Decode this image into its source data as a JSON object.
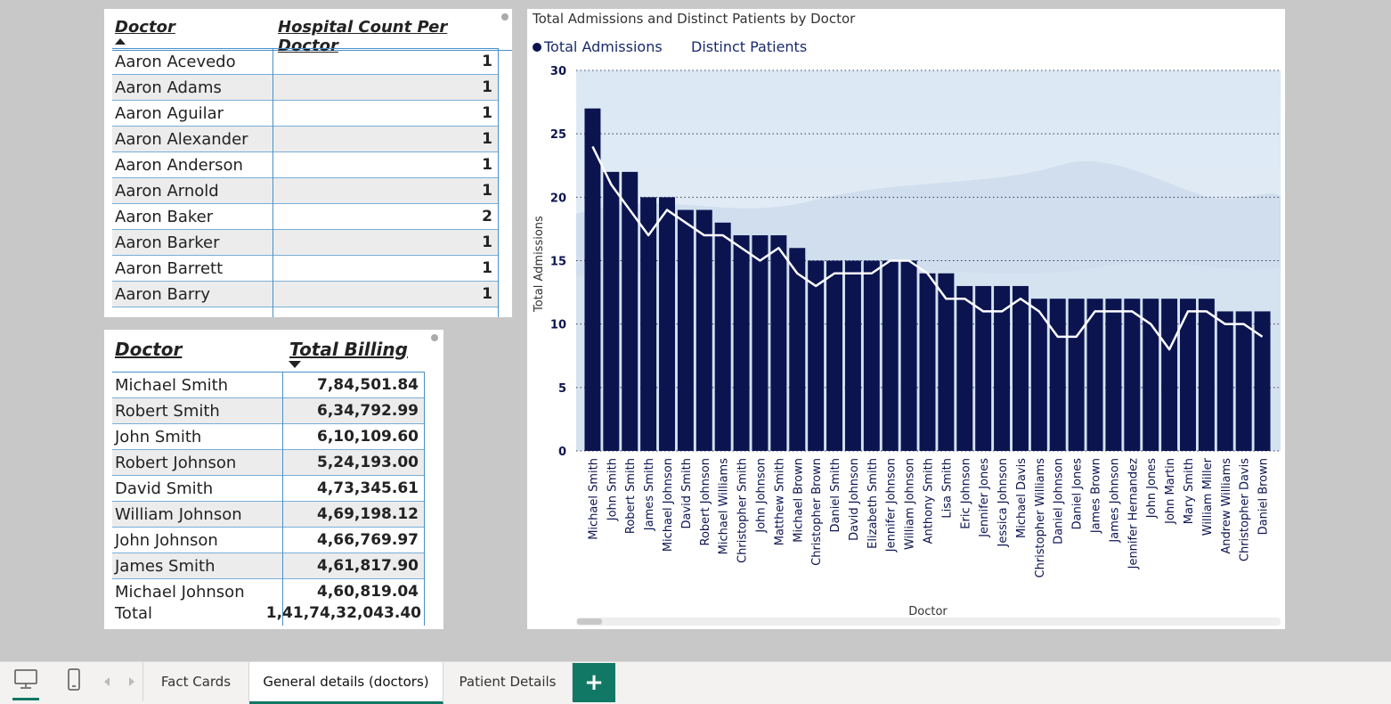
{
  "table1": {
    "col1": "Doctor",
    "col2": "Hospital Count Per Doctor",
    "rows": [
      {
        "name": "Aaron Acevedo",
        "value": "1"
      },
      {
        "name": "Aaron Adams",
        "value": "1"
      },
      {
        "name": "Aaron Aguilar",
        "value": "1"
      },
      {
        "name": "Aaron Alexander",
        "value": "1"
      },
      {
        "name": "Aaron Anderson",
        "value": "1"
      },
      {
        "name": "Aaron Arnold",
        "value": "1"
      },
      {
        "name": "Aaron Baker",
        "value": "2"
      },
      {
        "name": "Aaron Barker",
        "value": "1"
      },
      {
        "name": "Aaron Barrett",
        "value": "1"
      },
      {
        "name": "Aaron Barry",
        "value": "1"
      }
    ]
  },
  "table2": {
    "col1": "Doctor",
    "col2": "Total Billing",
    "rows": [
      {
        "name": "Michael Smith",
        "value": "7,84,501.84"
      },
      {
        "name": "Robert Smith",
        "value": "6,34,792.99"
      },
      {
        "name": "John Smith",
        "value": "6,10,109.60"
      },
      {
        "name": "Robert Johnson",
        "value": "5,24,193.00"
      },
      {
        "name": "David Smith",
        "value": "4,73,345.61"
      },
      {
        "name": "William Johnson",
        "value": "4,69,198.12"
      },
      {
        "name": "John Johnson",
        "value": "4,66,769.97"
      },
      {
        "name": "James Smith",
        "value": "4,61,817.90"
      },
      {
        "name": "Michael Johnson",
        "value": "4,60,819.04"
      }
    ],
    "total_label": "Total",
    "total_value": "1,41,74,32,043.40"
  },
  "chart": {
    "title": "Total Admissions and Distinct Patients by Doctor",
    "legend": [
      "Total Admissions",
      "Distinct Patients"
    ]
  },
  "chart_data": {
    "type": "bar",
    "title": "Total Admissions and Distinct Patients by Doctor",
    "xlabel": "Doctor",
    "ylabel": "Total Admissions",
    "ylim": [
      0,
      30
    ],
    "yticks": [
      0,
      5,
      10,
      15,
      20,
      25,
      30
    ],
    "grid": true,
    "legend_position": "top-left",
    "categories": [
      "Michael Smith",
      "John Smith",
      "Robert Smith",
      "James Smith",
      "Michael Johnson",
      "David Smith",
      "Robert Johnson",
      "Michael Williams",
      "Christopher Smith",
      "John Johnson",
      "Matthew Smith",
      "Michael Brown",
      "Christopher Brown",
      "Daniel Smith",
      "David Johnson",
      "Elizabeth Smith",
      "Jennifer Johnson",
      "William Johnson",
      "Anthony Smith",
      "Lisa Smith",
      "Eric Johnson",
      "Jennifer Jones",
      "Jessica Johnson",
      "Michael Davis",
      "Christopher Williams",
      "Daniel Johnson",
      "Daniel Jones",
      "James Brown",
      "James Johnson",
      "Jennifer Hernandez",
      "John Jones",
      "John Martin",
      "Mary Smith",
      "William Miller",
      "Andrew Williams",
      "Christopher Davis",
      "Daniel Brown"
    ],
    "series": [
      {
        "name": "Total Admissions",
        "kind": "bar",
        "color": "#0c1450",
        "values": [
          27,
          22,
          22,
          20,
          20,
          19,
          19,
          18,
          17,
          17,
          17,
          16,
          15,
          15,
          15,
          15,
          15,
          15,
          14,
          14,
          13,
          13,
          13,
          13,
          12,
          12,
          12,
          12,
          12,
          12,
          12,
          12,
          12,
          12,
          11,
          11,
          11
        ]
      },
      {
        "name": "Distinct Patients",
        "kind": "line",
        "color": "#ffffff",
        "values": [
          24,
          21,
          19,
          17,
          19,
          18,
          17,
          17,
          16,
          15,
          16,
          14,
          13,
          14,
          14,
          14,
          15,
          15,
          14,
          12,
          12,
          11,
          11,
          12,
          11,
          9,
          9,
          11,
          11,
          11,
          10,
          8,
          11,
          11,
          10,
          10,
          9
        ]
      }
    ]
  },
  "tabs": {
    "items": [
      "Fact Cards",
      "General details (doctors)",
      "Patient Details"
    ],
    "add": "+"
  }
}
